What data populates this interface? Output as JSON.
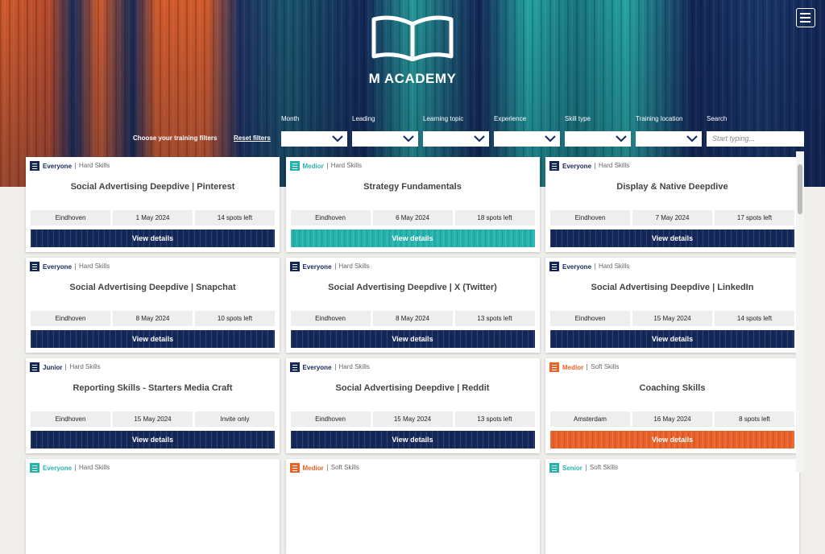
{
  "header": {
    "brand": "M ACADEMY"
  },
  "filters": {
    "intro": "Choose your training filters",
    "reset": "Reset filters",
    "dropdowns": [
      "Month",
      "Leading",
      "Learning topic",
      "Experience",
      "Skill type",
      "Training location"
    ],
    "search": {
      "label": "Search",
      "placeholder": "Start typing..."
    }
  },
  "button_label": "View details",
  "cards": [
    {
      "level": "Everyone",
      "skill": "Hard Skills",
      "title": "Social Advertising Deepdive | Pinterest",
      "location": "Eindhoven",
      "date": "1 May 2024",
      "spots": "14 spots left",
      "color": "#14285a"
    },
    {
      "level": "Medior",
      "skill": "Hard Skills",
      "title": "Strategy Fundamentals",
      "location": "Eindhoven",
      "date": "6 May 2024",
      "spots": "18 spots left",
      "color": "#27b3ad"
    },
    {
      "level": "Everyone",
      "skill": "Hard Skills",
      "title": "Display & Native Deepdive",
      "location": "Eindhoven",
      "date": "7 May 2024",
      "spots": "17 spots left",
      "color": "#14285a"
    },
    {
      "level": "Everyone",
      "skill": "Hard Skills",
      "title": "Social Advertising Deepdive | Snapchat",
      "location": "Eindhoven",
      "date": "8 May 2024",
      "spots": "10 spots left",
      "color": "#14285a"
    },
    {
      "level": "Everyone",
      "skill": "Hard Skills",
      "title": "Social Advertising Deepdive | X (Twitter)",
      "location": "Eindhoven",
      "date": "8 May 2024",
      "spots": "13 spots left",
      "color": "#14285a"
    },
    {
      "level": "Everyone",
      "skill": "Hard Skills",
      "title": "Social Advertising Deepdive | LinkedIn",
      "location": "Eindhoven",
      "date": "15 May 2024",
      "spots": "14 spots left",
      "color": "#14285a"
    },
    {
      "level": "Junior",
      "skill": "Hard Skills",
      "title": "Reporting Skills - Starters Media Craft",
      "location": "Eindhoven",
      "date": "15 May 2024",
      "spots": "Invite only",
      "color": "#14285a"
    },
    {
      "level": "Everyone",
      "skill": "Hard Skills",
      "title": "Social Advertising Deepdive | Reddit",
      "location": "Eindhoven",
      "date": "15 May 2024",
      "spots": "13 spots left",
      "color": "#14285a"
    },
    {
      "level": "Medior",
      "skill": "Soft Skills",
      "title": "Coaching Skills",
      "location": "Amsterdam",
      "date": "16 May 2024",
      "spots": "8 spots left",
      "color": "#e8622a"
    },
    {
      "level": "Everyone",
      "skill": "Hard Skills",
      "color": "#27b3ad"
    },
    {
      "level": "Medior",
      "skill": "Soft Skills",
      "color": "#e8622a"
    },
    {
      "level": "Senior",
      "skill": "Soft Skills",
      "color": "#27b3ad"
    }
  ]
}
